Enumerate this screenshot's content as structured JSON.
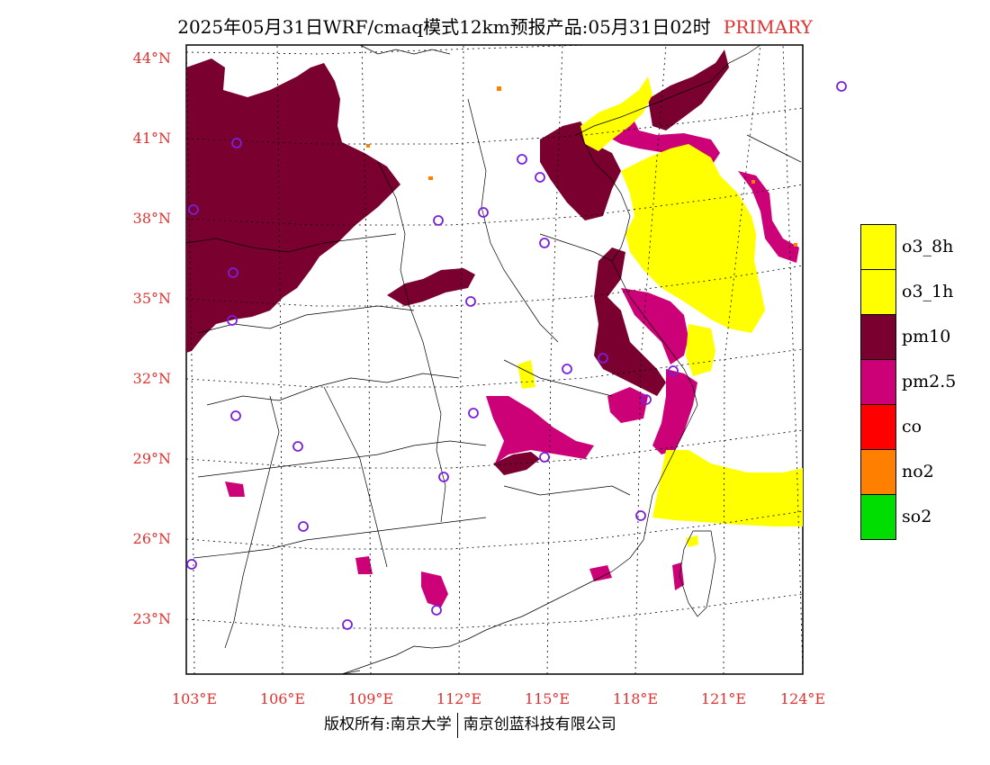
{
  "title": {
    "main": "2025年05月31日WRF/cmaq模式12km预报产品:05月31日02时",
    "tag": "PRIMARY"
  },
  "axes": {
    "lat_labels": [
      "44°N",
      "41°N",
      "38°N",
      "35°N",
      "32°N",
      "29°N",
      "26°N",
      "23°N"
    ],
    "lon_labels": [
      "103°E",
      "106°E",
      "109°E",
      "112°E",
      "115°E",
      "118°E",
      "121°E",
      "124°E"
    ]
  },
  "legend": [
    {
      "label": "o3_8h",
      "color": "#ffff00"
    },
    {
      "label": "o3_1h",
      "color": "#ffff00"
    },
    {
      "label": "pm10",
      "color": "#7a0030"
    },
    {
      "label": "pm2.5",
      "color": "#cc0077"
    },
    {
      "label": "co",
      "color": "#ff0000"
    },
    {
      "label": "no2",
      "color": "#ff7f00"
    },
    {
      "label": "so2",
      "color": "#00dd00"
    }
  ],
  "footer": {
    "left": "版权所有:南京大学",
    "right": "南京创蓝科技有限公司"
  }
}
